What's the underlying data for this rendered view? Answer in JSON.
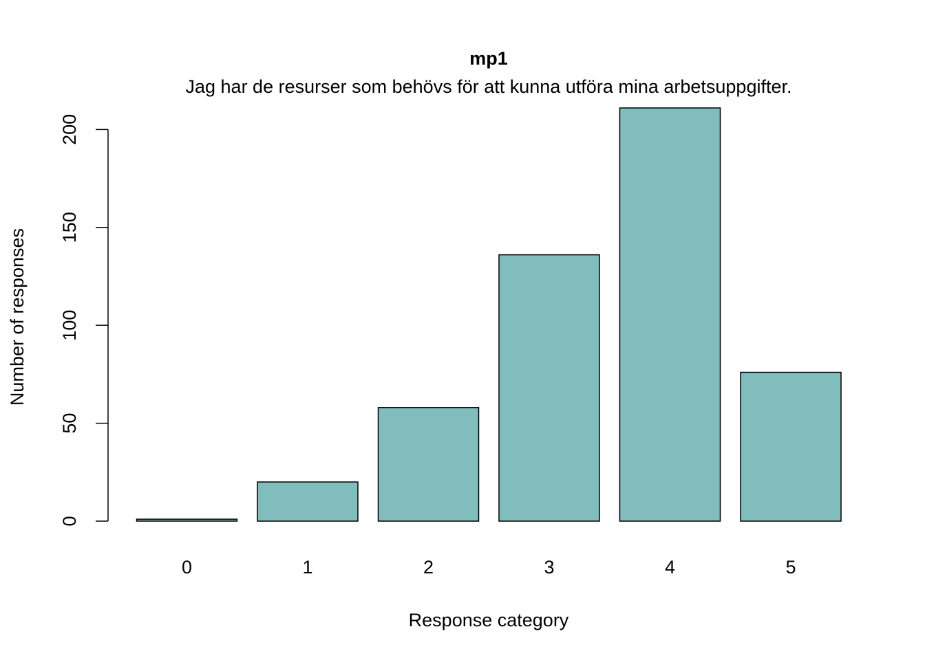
{
  "chart_data": {
    "type": "bar",
    "title": "mp1",
    "subtitle": "Jag har de resurser som behövs för att kunna utföra mina arbetsuppgifter.",
    "xlabel": "Response category",
    "ylabel": "Number of responses",
    "categories": [
      "0",
      "1",
      "2",
      "3",
      "4",
      "5"
    ],
    "values": [
      1,
      20,
      58,
      136,
      211,
      76
    ],
    "yticks": [
      0,
      50,
      100,
      150,
      200
    ],
    "ylim": [
      0,
      211
    ],
    "grid": false,
    "legend": "none",
    "bar_color": "#80BDBC",
    "bar_stroke": "#000000"
  }
}
